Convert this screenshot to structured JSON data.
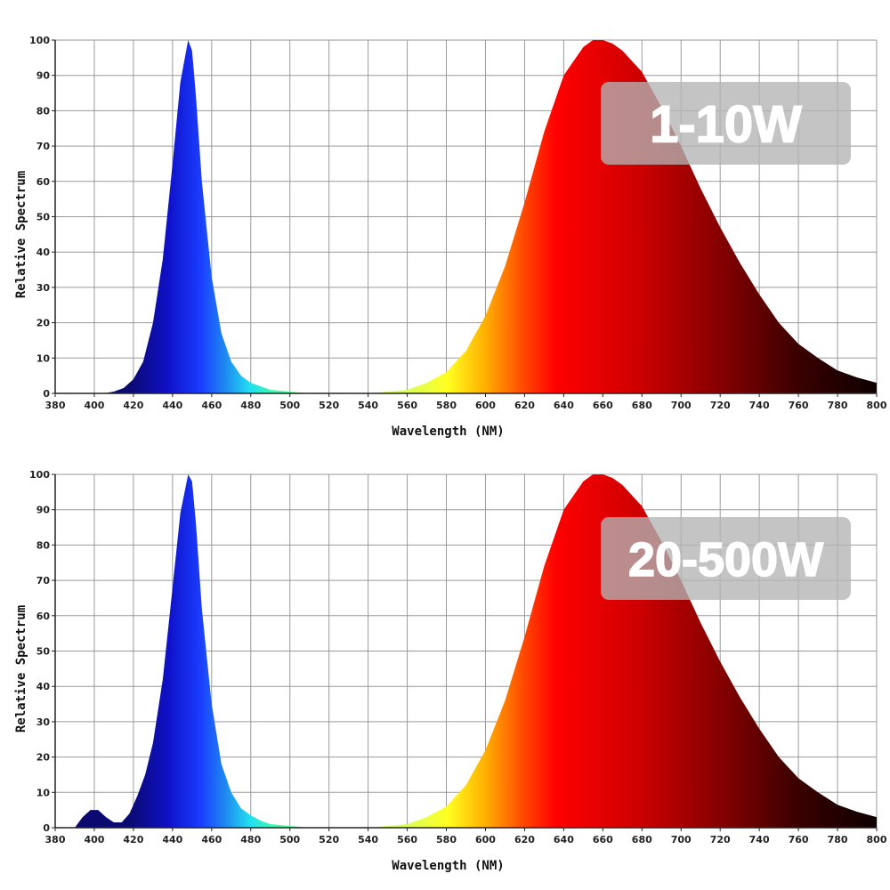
{
  "chart_data": [
    {
      "type": "area",
      "badge": "1-10W",
      "xlabel": "Wavelength (NM)",
      "ylabel": "Relative Spectrum",
      "xlim": [
        380,
        800
      ],
      "ylim": [
        0,
        100
      ],
      "x_ticks": [
        380,
        400,
        420,
        440,
        460,
        480,
        500,
        520,
        540,
        560,
        580,
        600,
        620,
        640,
        660,
        680,
        700,
        720,
        740,
        760,
        780,
        800
      ],
      "y_ticks": [
        0,
        10,
        20,
        30,
        40,
        50,
        60,
        70,
        80,
        90,
        100
      ],
      "grid": true,
      "series": [
        {
          "x": [
            380,
            405,
            410,
            415,
            420,
            425,
            430,
            435,
            440,
            444,
            448,
            450,
            452,
            455,
            460,
            465,
            470,
            475,
            480,
            485,
            490,
            500,
            510,
            520
          ],
          "values": [
            0,
            0,
            0.5,
            1.5,
            4,
            9,
            20,
            38,
            65,
            88,
            100,
            97,
            84,
            60,
            33,
            17,
            9,
            5,
            3,
            2,
            1,
            0.5,
            0,
            0
          ]
        },
        {
          "x": [
            520,
            540,
            560,
            570,
            580,
            590,
            600,
            610,
            620,
            630,
            640,
            650,
            655,
            660,
            665,
            670,
            680,
            690,
            700,
            710,
            720,
            730,
            740,
            750,
            760,
            770,
            780,
            790,
            800
          ],
          "values": [
            0,
            0,
            1,
            3,
            6,
            12,
            22,
            36,
            54,
            74,
            90,
            98,
            100,
            100,
            99,
            97,
            91,
            81,
            70,
            58,
            47,
            37,
            28,
            20,
            14,
            10,
            6.5,
            4.5,
            3
          ]
        }
      ]
    },
    {
      "type": "area",
      "badge": "20-500W",
      "xlabel": "Wavelength (NM)",
      "ylabel": "Relative Spectrum",
      "xlim": [
        380,
        800
      ],
      "ylim": [
        0,
        100
      ],
      "x_ticks": [
        380,
        400,
        420,
        440,
        460,
        480,
        500,
        520,
        540,
        560,
        580,
        600,
        620,
        640,
        660,
        680,
        700,
        720,
        740,
        760,
        780,
        800
      ],
      "y_ticks": [
        0,
        10,
        20,
        30,
        40,
        50,
        60,
        70,
        80,
        90,
        100
      ],
      "grid": true,
      "series": [
        {
          "x": [
            390,
            394,
            398,
            402,
            406,
            410,
            414,
            418,
            422,
            426,
            430,
            435,
            440,
            444,
            448,
            450,
            452,
            455,
            460,
            465,
            470,
            475,
            480,
            485,
            490,
            500,
            510,
            520
          ],
          "values": [
            0,
            3,
            5,
            5,
            3,
            1.5,
            1.5,
            4,
            9,
            15,
            24,
            42,
            68,
            89,
            100,
            98,
            86,
            62,
            35,
            18,
            10,
            5.5,
            3.5,
            2,
            1,
            0.5,
            0,
            0
          ]
        },
        {
          "x": [
            520,
            540,
            560,
            570,
            580,
            590,
            600,
            610,
            620,
            630,
            640,
            650,
            655,
            660,
            665,
            670,
            680,
            690,
            700,
            710,
            720,
            730,
            740,
            750,
            760,
            770,
            780,
            790,
            800
          ],
          "values": [
            0,
            0,
            1,
            3,
            6,
            12,
            22,
            36,
            54,
            74,
            90,
            98,
            100,
            100,
            99,
            97,
            91,
            81,
            70,
            58,
            47,
            37,
            28,
            20,
            14,
            10,
            6.5,
            4.5,
            3
          ]
        }
      ]
    }
  ]
}
